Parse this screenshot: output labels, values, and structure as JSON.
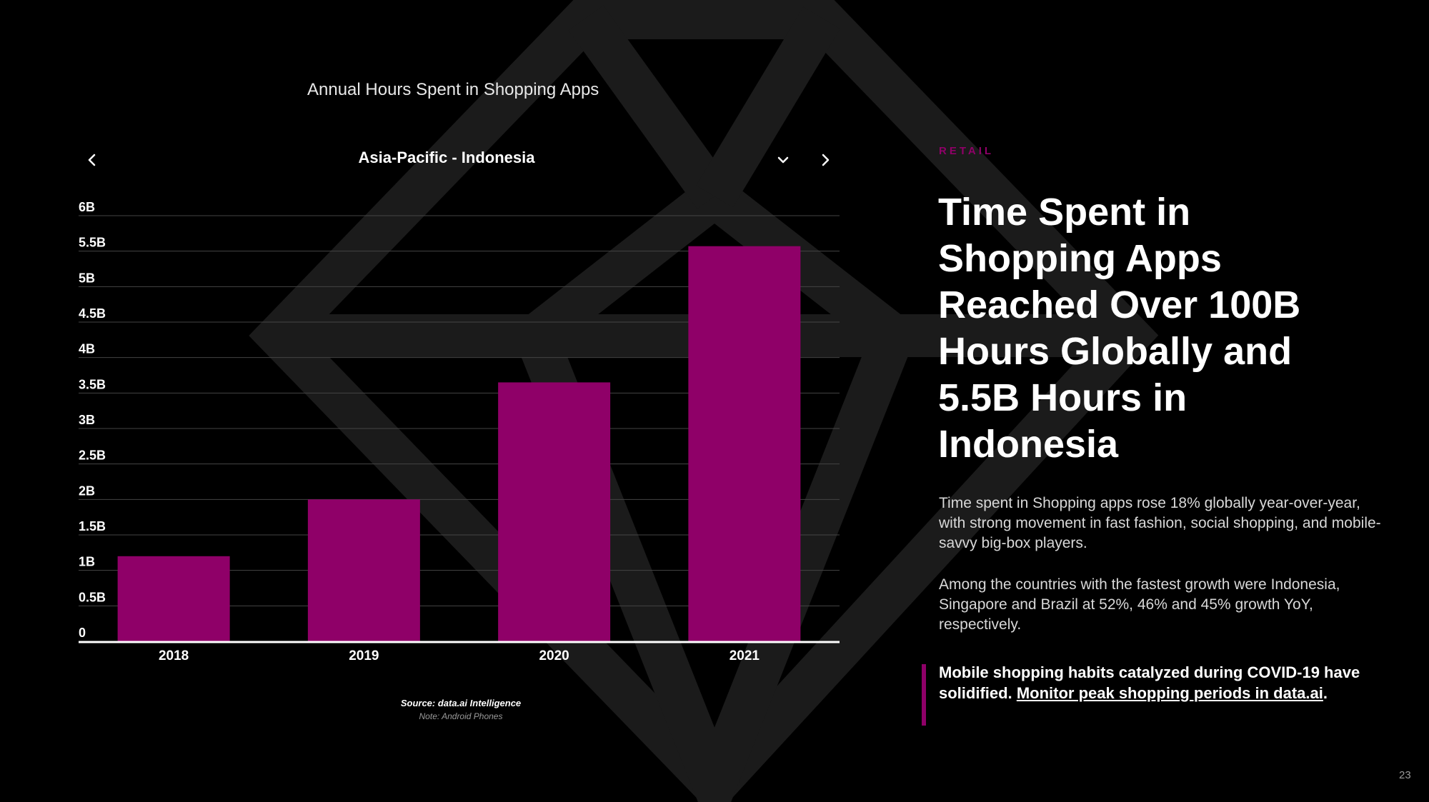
{
  "colors": {
    "accent": "#8f0068",
    "background": "#000000",
    "watermark": "#1b1b1b",
    "gridline": "#444444"
  },
  "chart": {
    "title": "Annual Hours Spent in Shopping Apps",
    "region": "Asia-Pacific - Indonesia",
    "source": "Source: data.ai Intelligence",
    "note": "Note: Android Phones"
  },
  "chart_data": {
    "type": "bar",
    "title": "Annual Hours Spent in Shopping Apps",
    "categories": [
      "2018",
      "2019",
      "2020",
      "2021"
    ],
    "values": [
      1.2,
      2.0,
      3.65,
      5.57
    ],
    "unit": "B",
    "y_ticks": [
      "0",
      "0.5B",
      "1B",
      "1.5B",
      "2B",
      "2.5B",
      "3B",
      "3.5B",
      "4B",
      "4.5B",
      "5B",
      "5.5B",
      "6B"
    ],
    "ylim": [
      0,
      6
    ],
    "grid": true,
    "xlabel": "",
    "ylabel": "",
    "color": "#8f0068"
  },
  "icons": {
    "prev": "chevron-left-icon",
    "next": "chevron-right-icon",
    "dropdown": "chevron-down-icon"
  },
  "article": {
    "category": "RETAIL",
    "headline": "Time Spent in Shopping Apps Reached Over 100B Hours Globally and 5.5B Hours in Indonesia",
    "paragraph1": "Time spent in Shopping apps rose 18% globally year-over-year, with strong movement in fast fashion, social shopping, and mobile-savvy big-box players.",
    "paragraph2": "Among the countries with the fastest growth were Indonesia, Singapore and Brazil at 52%, 46% and 45% growth YoY, respectively.",
    "callout_text": "Mobile shopping habits catalyzed during COVID-19 have solidified.",
    "callout_link": "Monitor peak shopping periods in data.ai",
    "callout_end": "."
  },
  "page_number": "23"
}
